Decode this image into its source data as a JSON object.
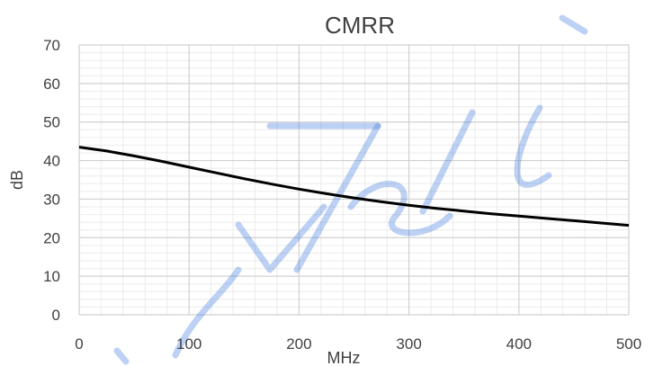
{
  "chart_data": {
    "type": "line",
    "title": "CMRR",
    "xlabel": "MHz",
    "ylabel": "dB",
    "xlim": [
      0,
      500
    ],
    "ylim": [
      0,
      70
    ],
    "x_ticks": [
      "0",
      "100",
      "200",
      "300",
      "400",
      "500"
    ],
    "y_ticks": [
      "0",
      "10",
      "20",
      "30",
      "40",
      "50",
      "60",
      "70"
    ],
    "grid": true,
    "legend": "none",
    "series": [
      {
        "color": "#000000",
        "x": [
          0,
          25,
          50,
          75,
          100,
          125,
          150,
          175,
          200,
          225,
          250,
          275,
          300,
          325,
          350,
          375,
          400,
          425,
          450,
          475,
          500
        ],
        "y": [
          43.5,
          42.5,
          41.2,
          39.8,
          38.3,
          36.8,
          35.3,
          33.9,
          32.6,
          31.4,
          30.3,
          29.3,
          28.4,
          27.6,
          26.9,
          26.2,
          25.6,
          25.0,
          24.4,
          23.8,
          23.2
        ]
      }
    ]
  }
}
